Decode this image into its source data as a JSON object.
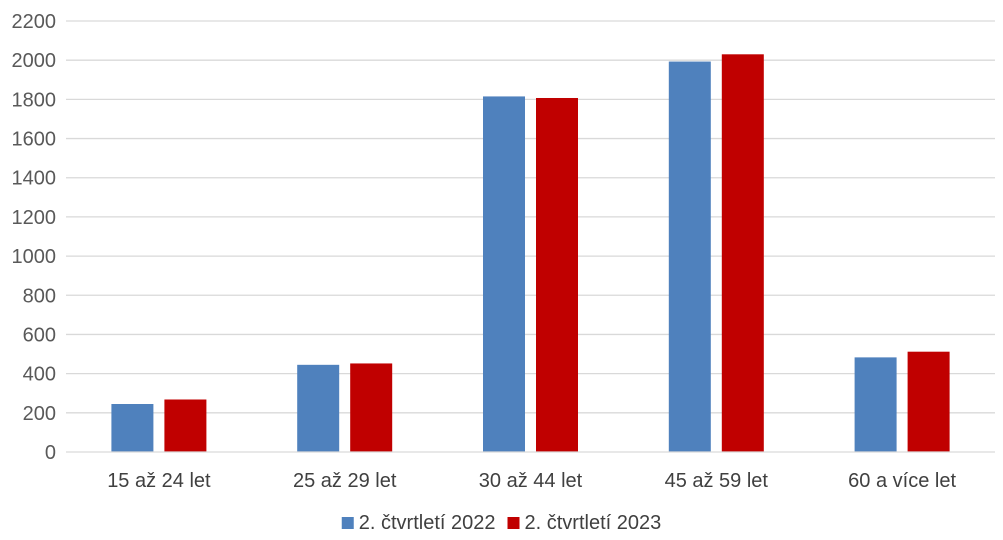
{
  "chart_data": {
    "type": "bar",
    "categories": [
      "15 až 24 let",
      "25 až 29 let",
      "30 až 44 let",
      "45 až 59 let",
      "60 a více let"
    ],
    "series": [
      {
        "name": "2. čtvrtletí 2022",
        "color": "#4f81bd",
        "values": [
          245,
          445,
          1815,
          1993,
          483
        ]
      },
      {
        "name": "2. čtvrtletí 2023",
        "color": "#c00000",
        "values": [
          268,
          452,
          1807,
          2030,
          512
        ]
      }
    ],
    "yticks": [
      0,
      200,
      400,
      600,
      800,
      1000,
      1200,
      1400,
      1600,
      1800,
      2000,
      2200
    ],
    "ylim": [
      0,
      2200
    ],
    "grid": true,
    "legend": "bottom-center",
    "title": "",
    "xlabel": "",
    "ylabel": ""
  }
}
